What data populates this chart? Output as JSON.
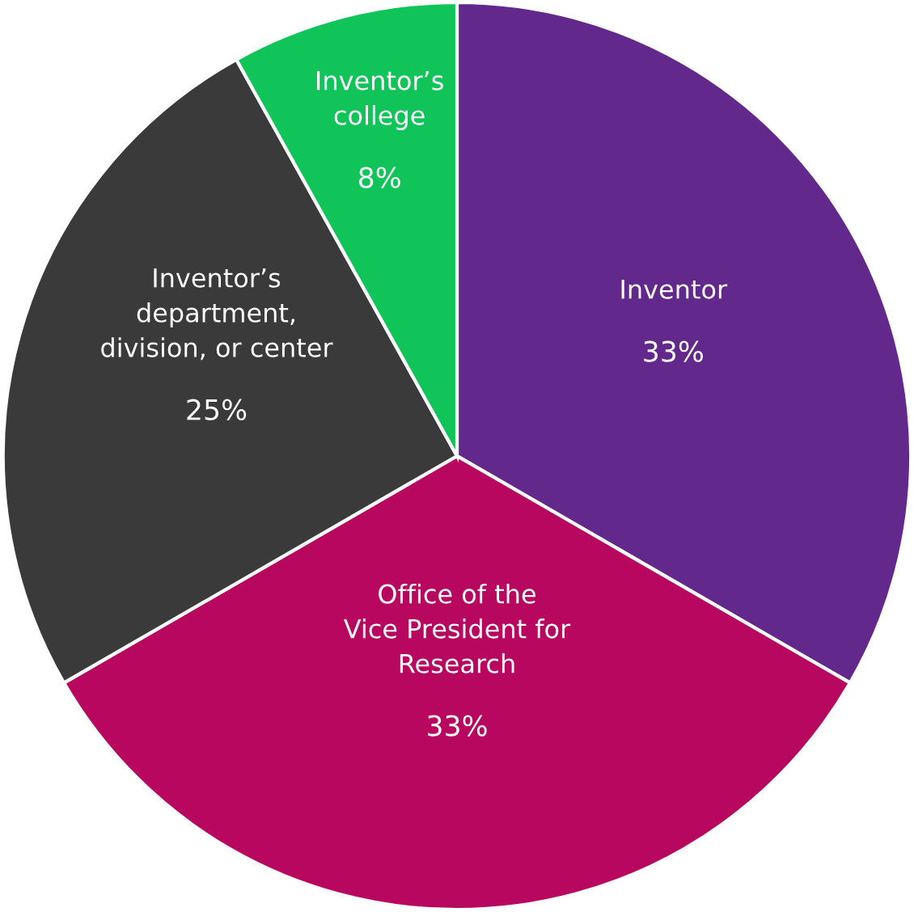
{
  "chart_data": {
    "type": "pie",
    "categories": [
      "Inventor",
      "Office of the\nVice President for\nResearch",
      "Inventor’s\ndepartment,\ndivision, or center",
      "Inventor’s\ncollege"
    ],
    "values": [
      33,
      33,
      25,
      8
    ],
    "colors": [
      "#62288c",
      "#b8075f",
      "#3a3a3a",
      "#10c45a"
    ],
    "value_labels": [
      "33%",
      "33%",
      "25%",
      "8%"
    ]
  }
}
